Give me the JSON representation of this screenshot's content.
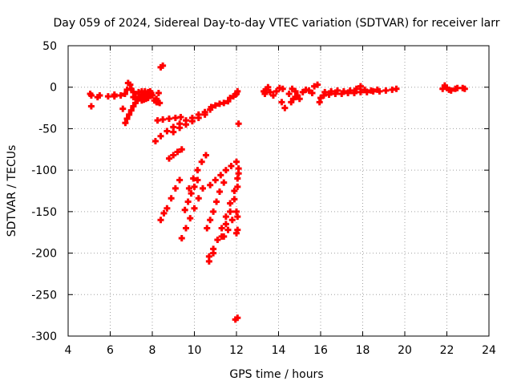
{
  "chart_data": {
    "type": "scatter",
    "title": "Day 059 of 2024, Sidereal Day-to-day VTEC variation (SDTVAR) for receiver larr",
    "xlabel": "GPS time / hours",
    "ylabel": "SDTVAR / TECUs",
    "xlim": [
      4,
      24
    ],
    "ylim": [
      -300,
      50
    ],
    "xticks": [
      4,
      6,
      8,
      10,
      12,
      14,
      16,
      18,
      20,
      22,
      24
    ],
    "yticks": [
      50,
      0,
      -50,
      -100,
      -150,
      -200,
      -250,
      -300
    ],
    "grid": true,
    "marker_color": "#ff0000",
    "series": [
      {
        "values_note": "",
        "points": [
          [
            5.05,
            -8
          ],
          [
            5.1,
            -10
          ],
          [
            5.1,
            -23
          ],
          [
            5.4,
            -12
          ],
          [
            5.5,
            -10
          ],
          [
            5.9,
            -11
          ],
          [
            6.2,
            -9
          ],
          [
            6.2,
            -11
          ],
          [
            6.5,
            -10
          ],
          [
            6.7,
            -8
          ],
          [
            6.8,
            -3
          ],
          [
            6.85,
            5
          ],
          [
            6.95,
            3
          ],
          [
            7.0,
            -2
          ],
          [
            7.1,
            -6
          ],
          [
            7.2,
            -8
          ],
          [
            7.35,
            -6
          ],
          [
            7.5,
            -5
          ],
          [
            7.65,
            -5
          ],
          [
            7.8,
            -6
          ],
          [
            7.9,
            -5
          ],
          [
            7.95,
            -7
          ],
          [
            8.0,
            -10
          ],
          [
            7.1,
            -12
          ],
          [
            7.3,
            -14
          ],
          [
            7.45,
            -11
          ],
          [
            7.6,
            -10
          ],
          [
            7.75,
            -9
          ],
          [
            7.9,
            -8
          ],
          [
            6.6,
            -26
          ],
          [
            6.72,
            -43
          ],
          [
            6.8,
            -38
          ],
          [
            6.9,
            -33
          ],
          [
            7.0,
            -28
          ],
          [
            7.1,
            -23
          ],
          [
            7.2,
            -19
          ],
          [
            7.3,
            -15
          ],
          [
            7.4,
            -12
          ],
          [
            7.5,
            -16
          ],
          [
            7.6,
            -15
          ],
          [
            7.7,
            -14
          ],
          [
            7.8,
            -13
          ],
          [
            8.15,
            -16
          ],
          [
            8.25,
            -18
          ],
          [
            8.35,
            -19
          ],
          [
            8.4,
            24
          ],
          [
            8.5,
            26
          ],
          [
            8.1,
            -16
          ],
          [
            8.2,
            -18
          ],
          [
            8.3,
            -7
          ],
          [
            8.2,
            -14
          ],
          [
            8.25,
            -40
          ],
          [
            8.5,
            -39
          ],
          [
            8.8,
            -38
          ],
          [
            9.1,
            -37
          ],
          [
            9.35,
            -36
          ],
          [
            8.15,
            -65
          ],
          [
            8.4,
            -59
          ],
          [
            8.7,
            -53
          ],
          [
            9.0,
            -48
          ],
          [
            9.3,
            -44
          ],
          [
            9.6,
            -40
          ],
          [
            9.9,
            -37
          ],
          [
            10.2,
            -33
          ],
          [
            10.5,
            -30
          ],
          [
            10.75,
            -27
          ],
          [
            9.0,
            -54
          ],
          [
            9.3,
            -49
          ],
          [
            9.6,
            -45
          ],
          [
            9.9,
            -41
          ],
          [
            10.2,
            -37
          ],
          [
            10.5,
            -33
          ],
          [
            10.8,
            -24
          ],
          [
            11.0,
            -22
          ],
          [
            11.2,
            -20
          ],
          [
            11.4,
            -19
          ],
          [
            11.6,
            -17
          ],
          [
            11.7,
            -13
          ],
          [
            11.85,
            -11
          ],
          [
            11.95,
            -9
          ],
          [
            12.0,
            -8
          ],
          [
            12.05,
            -5
          ],
          [
            12.1,
            -44
          ],
          [
            8.8,
            -86
          ],
          [
            9.0,
            -82
          ],
          [
            9.2,
            -78
          ],
          [
            9.4,
            -75
          ],
          [
            8.4,
            -160
          ],
          [
            8.55,
            -152
          ],
          [
            8.7,
            -146
          ],
          [
            8.9,
            -134
          ],
          [
            9.1,
            -122
          ],
          [
            9.3,
            -112
          ],
          [
            9.4,
            -182
          ],
          [
            9.6,
            -170
          ],
          [
            9.8,
            -158
          ],
          [
            10.0,
            -146
          ],
          [
            10.2,
            -134
          ],
          [
            10.4,
            -122
          ],
          [
            9.55,
            -148
          ],
          [
            9.7,
            -138
          ],
          [
            9.85,
            -128
          ],
          [
            10.0,
            -120
          ],
          [
            10.15,
            -112
          ],
          [
            9.75,
            -122
          ],
          [
            9.95,
            -110
          ],
          [
            10.15,
            -100
          ],
          [
            10.35,
            -90
          ],
          [
            10.55,
            -82
          ],
          [
            10.6,
            -170
          ],
          [
            10.75,
            -160
          ],
          [
            10.9,
            -150
          ],
          [
            11.05,
            -138
          ],
          [
            11.2,
            -126
          ],
          [
            11.4,
            -115
          ],
          [
            10.75,
            -118
          ],
          [
            11.0,
            -112
          ],
          [
            11.25,
            -106
          ],
          [
            11.5,
            -100
          ],
          [
            11.75,
            -95
          ],
          [
            12.0,
            -90
          ],
          [
            10.7,
            -204
          ],
          [
            10.9,
            -195
          ],
          [
            11.1,
            -184
          ],
          [
            11.3,
            -170
          ],
          [
            11.5,
            -156
          ],
          [
            11.7,
            -140
          ],
          [
            11.9,
            -125
          ],
          [
            12.05,
            -110
          ],
          [
            10.7,
            -210
          ],
          [
            10.9,
            -200
          ],
          [
            11.3,
            -180
          ],
          [
            11.5,
            -165
          ],
          [
            11.7,
            -150
          ],
          [
            11.9,
            -135
          ],
          [
            12.05,
            -120
          ],
          [
            11.4,
            -180
          ],
          [
            11.6,
            -172
          ],
          [
            11.8,
            -160
          ],
          [
            12.0,
            -150
          ],
          [
            12.1,
            -98
          ],
          [
            12.1,
            -104
          ],
          [
            12.05,
            -156
          ],
          [
            12.05,
            -172
          ],
          [
            12.0,
            -176
          ],
          [
            12.05,
            -278
          ],
          [
            11.95,
            -280
          ],
          [
            13.3,
            -5
          ],
          [
            13.35,
            -8
          ],
          [
            13.4,
            -3
          ],
          [
            13.5,
            0
          ],
          [
            13.6,
            -6
          ],
          [
            13.75,
            -10
          ],
          [
            13.9,
            -5
          ],
          [
            14.05,
            -1
          ],
          [
            14.2,
            -2
          ],
          [
            14.15,
            -18
          ],
          [
            14.3,
            -25
          ],
          [
            14.5,
            -8
          ],
          [
            14.65,
            -2
          ],
          [
            14.8,
            -5
          ],
          [
            14.9,
            -10
          ],
          [
            15.0,
            -14
          ],
          [
            15.15,
            -6
          ],
          [
            15.3,
            -3
          ],
          [
            15.45,
            -4
          ],
          [
            15.6,
            -7
          ],
          [
            15.7,
            1
          ],
          [
            15.85,
            3
          ],
          [
            14.6,
            -18
          ],
          [
            14.7,
            -14
          ],
          [
            14.8,
            -12
          ],
          [
            15.95,
            -18
          ],
          [
            16.0,
            -13
          ],
          [
            16.15,
            -10
          ],
          [
            16.4,
            -9
          ],
          [
            16.7,
            -8
          ],
          [
            17.0,
            -8
          ],
          [
            17.3,
            -7
          ],
          [
            17.6,
            -7
          ],
          [
            17.9,
            -6
          ],
          [
            18.2,
            -6
          ],
          [
            18.5,
            -5
          ],
          [
            18.8,
            -5
          ],
          [
            19.1,
            -4
          ],
          [
            19.4,
            -3
          ],
          [
            19.6,
            -2
          ],
          [
            16.2,
            -6
          ],
          [
            16.5,
            -5
          ],
          [
            16.8,
            -4
          ],
          [
            17.1,
            -5
          ],
          [
            17.4,
            -4
          ],
          [
            17.7,
            -2
          ],
          [
            17.9,
            1
          ],
          [
            18.1,
            -3
          ],
          [
            18.4,
            -4
          ],
          [
            18.7,
            -3
          ],
          [
            21.8,
            -2
          ],
          [
            21.9,
            2
          ],
          [
            22.0,
            -1
          ],
          [
            22.1,
            -3
          ],
          [
            22.2,
            -4
          ],
          [
            22.4,
            -2
          ],
          [
            22.5,
            -1
          ],
          [
            22.75,
            -1
          ],
          [
            22.85,
            -2
          ]
        ]
      }
    ]
  }
}
